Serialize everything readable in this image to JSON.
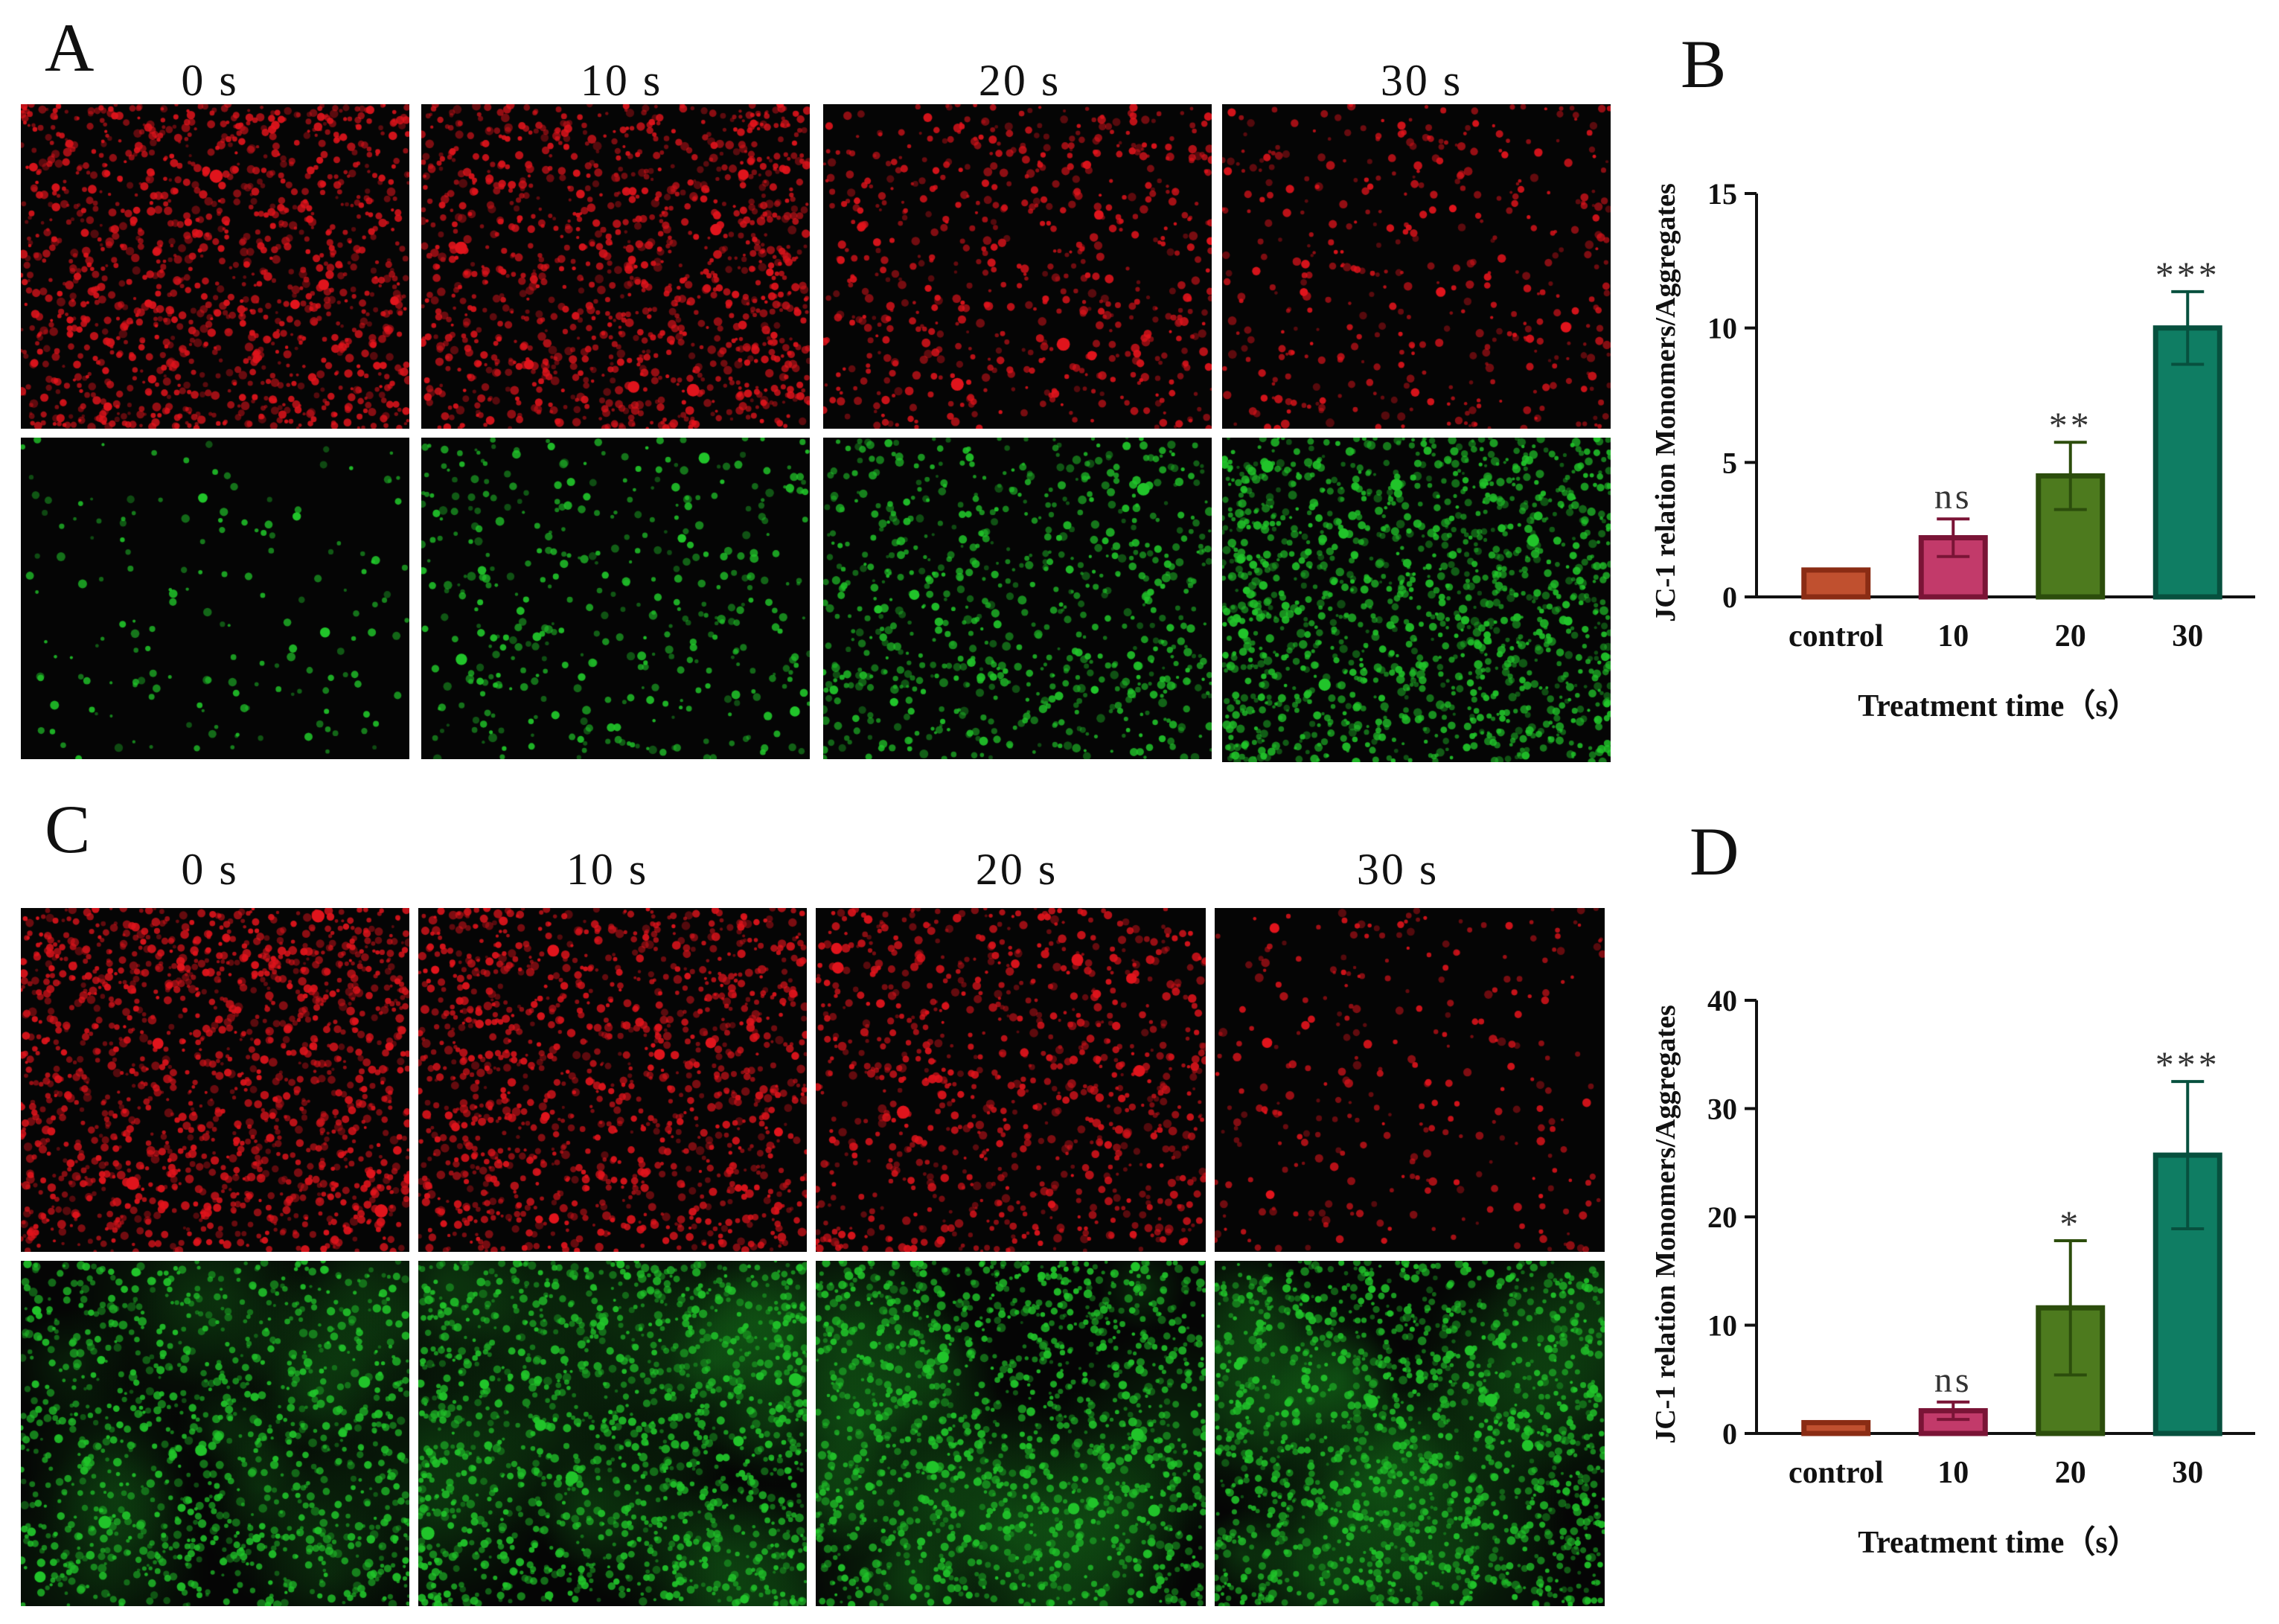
{
  "panels": {
    "A": {
      "letter": "A",
      "columns": [
        "0 s",
        "10 s",
        "20 s",
        "30 s"
      ]
    },
    "B": {
      "letter": "B"
    },
    "C": {
      "letter": "C",
      "columns": [
        "0 s",
        "10 s",
        "20 s",
        "30 s"
      ]
    },
    "D": {
      "letter": "D"
    }
  },
  "micrographs": {
    "channels": [
      "red",
      "green"
    ],
    "colors": {
      "red": "#e0141c",
      "green": "#21c42a"
    }
  },
  "chart_data": [
    {
      "panel": "B",
      "type": "bar",
      "categories": [
        "control",
        "10",
        "20",
        "30"
      ],
      "values": [
        1.0,
        2.2,
        4.5,
        10.0
      ],
      "errors": [
        0.0,
        0.7,
        1.25,
        1.35
      ],
      "significance": [
        "",
        "ns",
        "**",
        "***"
      ],
      "ylabel": "JC-1 relation Monomers/Aggregates",
      "xlabel": "Treatment time（s）",
      "ylim": [
        0,
        15
      ],
      "yticks": [
        0,
        5,
        10,
        15
      ],
      "bar_fills": [
        "#c0502f",
        "#c23a6a",
        "#4d7a1e",
        "#0f7d63"
      ],
      "bar_strokes": [
        "#8a2c14",
        "#7a1436",
        "#2c4d0c",
        "#07503e"
      ]
    },
    {
      "panel": "D",
      "type": "bar",
      "categories": [
        "control",
        "10",
        "20",
        "30"
      ],
      "values": [
        1.0,
        2.1,
        11.6,
        25.7
      ],
      "errors": [
        0.0,
        0.8,
        6.2,
        6.8
      ],
      "significance": [
        "",
        "ns",
        "*",
        "***"
      ],
      "ylabel": "JC-1 relation Monomers/Aggregates",
      "xlabel": "Treatment time（s）",
      "ylim": [
        0,
        40
      ],
      "yticks": [
        0,
        10,
        20,
        30,
        40
      ],
      "bar_fills": [
        "#c0502f",
        "#c23a6a",
        "#4d7a1e",
        "#0f7d63"
      ],
      "bar_strokes": [
        "#8a2c14",
        "#7a1436",
        "#2c4d0c",
        "#07503e"
      ]
    }
  ]
}
